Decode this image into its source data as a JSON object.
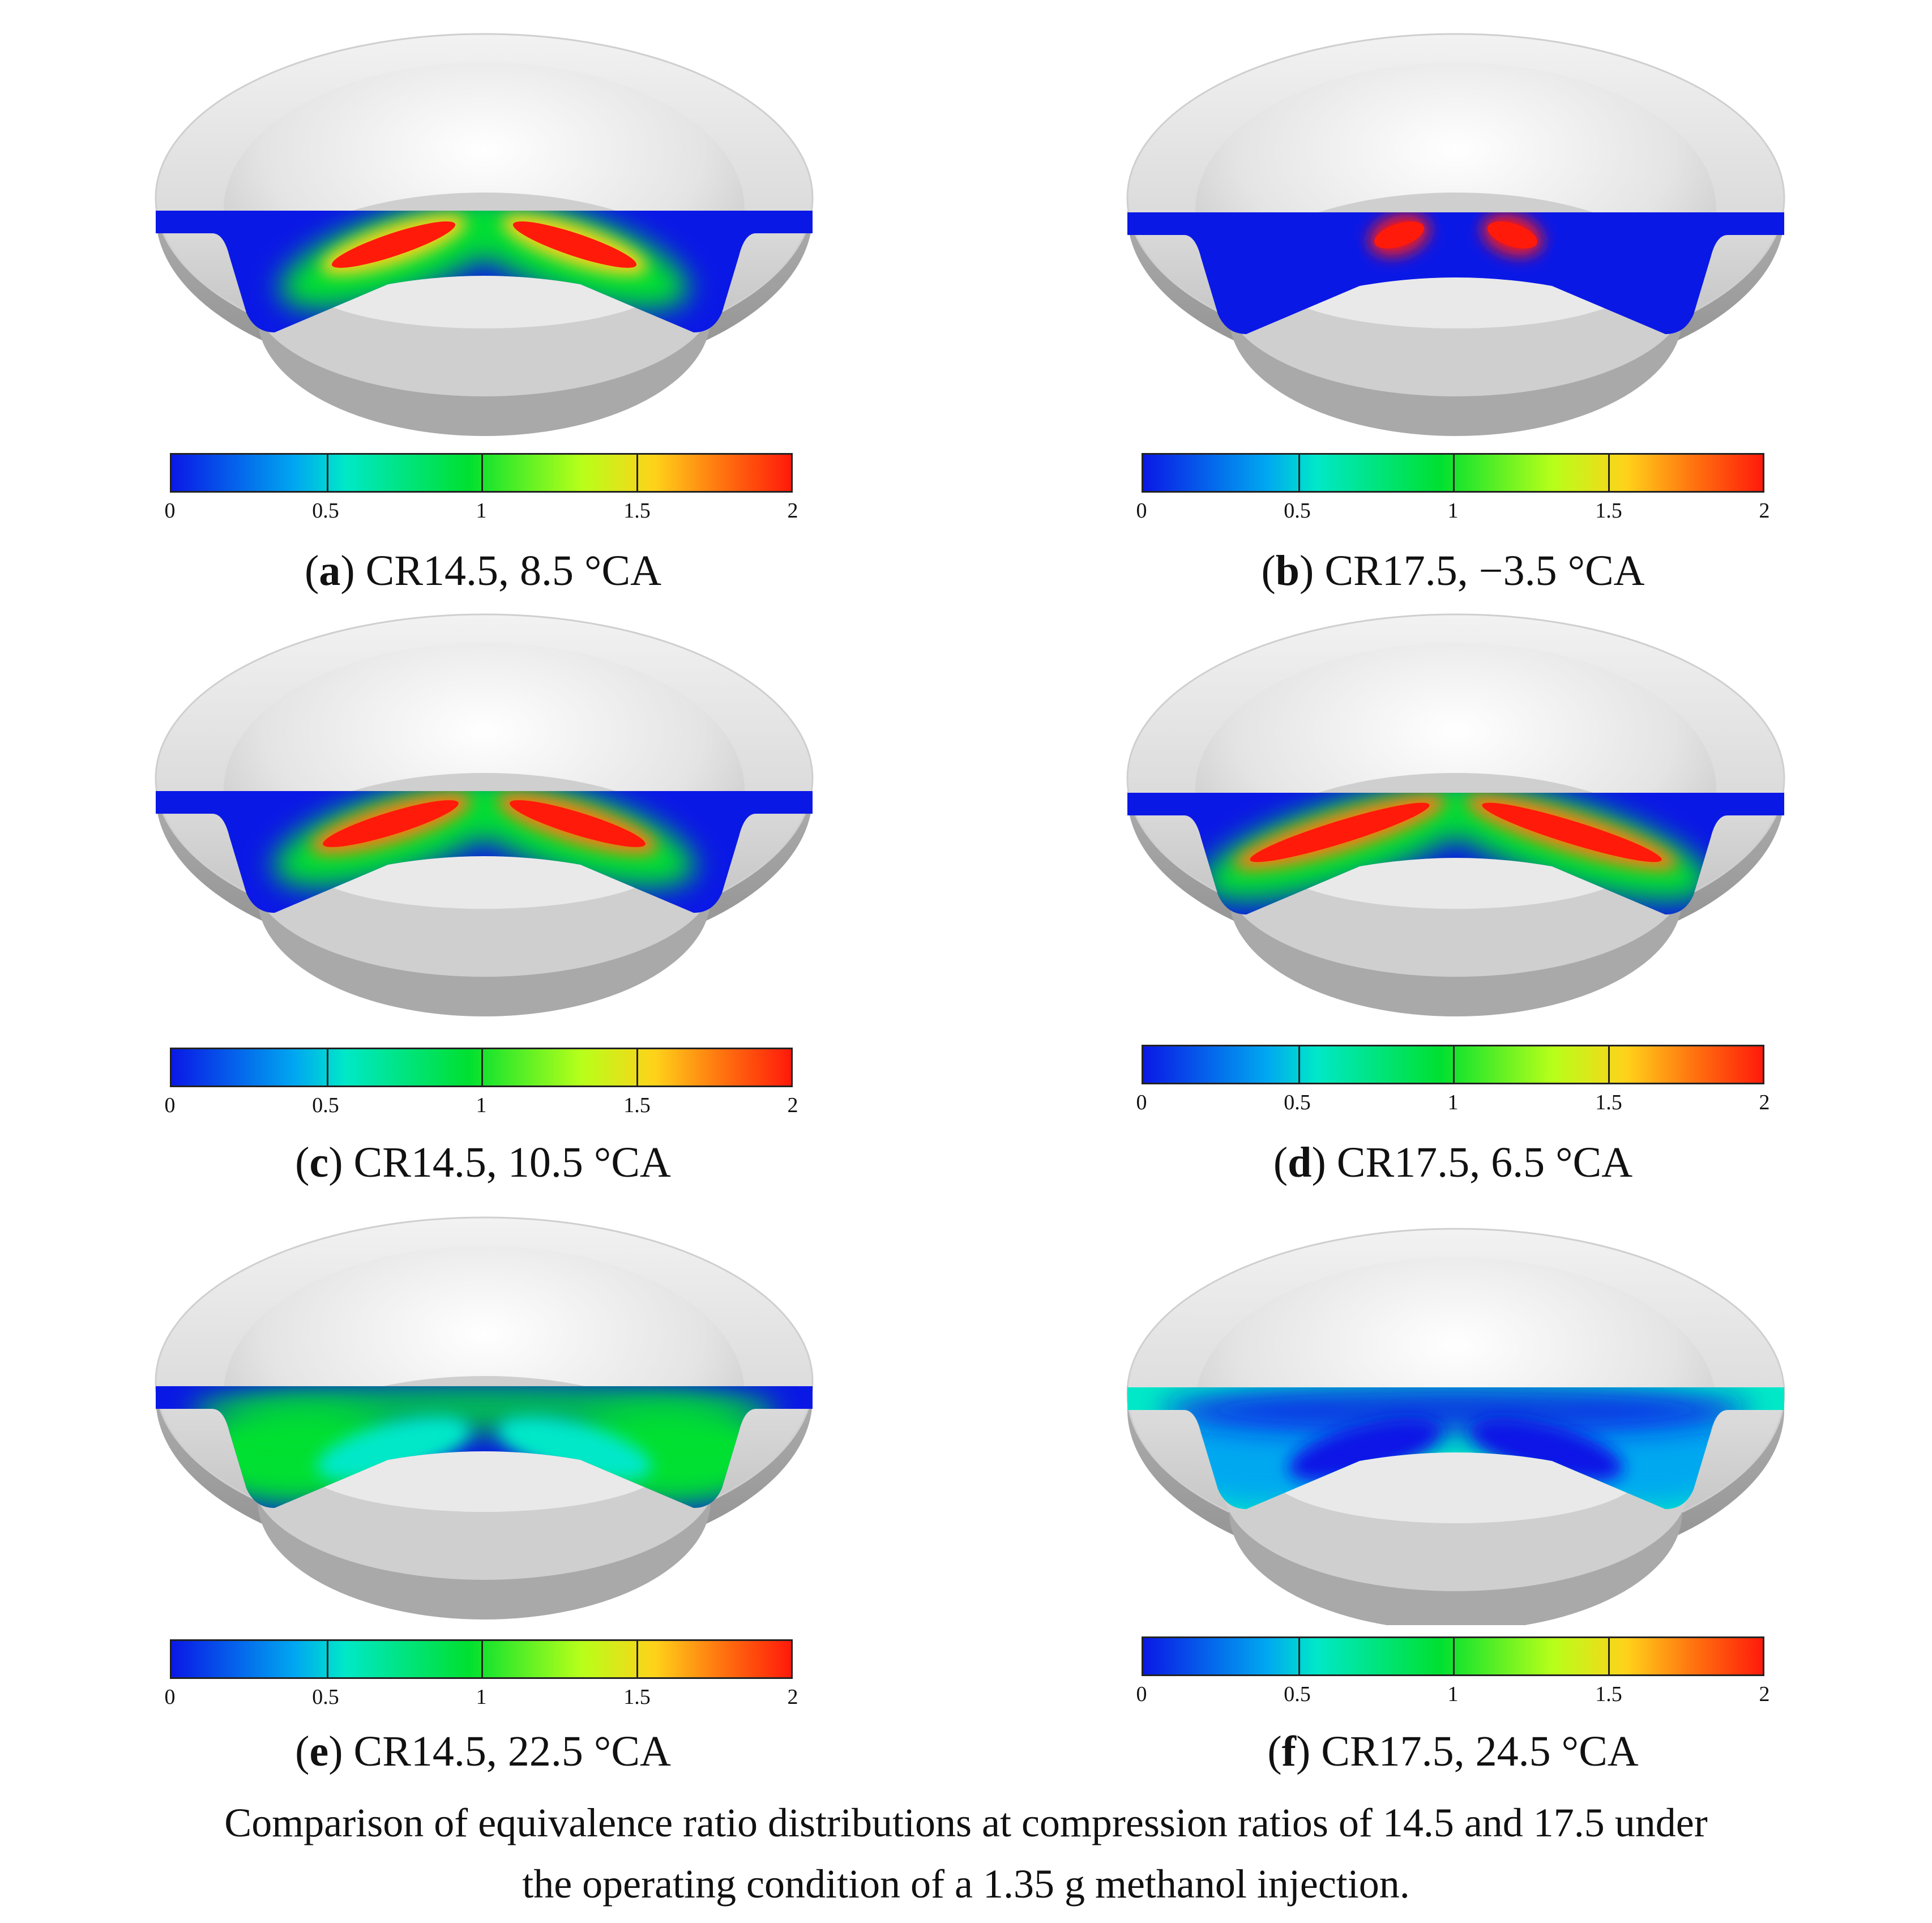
{
  "colorbar": {
    "ticks": [
      "0",
      "0.5",
      "1",
      "1.5",
      "2"
    ],
    "range": [
      0,
      2
    ],
    "colormap": [
      "#0a18e6",
      "#00a8f0",
      "#00e8c8",
      "#00e030",
      "#b6ff1a",
      "#ffd21a",
      "#ff7a10",
      "#ff1a0a"
    ]
  },
  "panels": [
    {
      "letter": "a",
      "text": "CR14.5, 8.5 °CA"
    },
    {
      "letter": "b",
      "text": "CR17.5, −3.5 °CA"
    },
    {
      "letter": "c",
      "text": "CR14.5, 10.5 °CA"
    },
    {
      "letter": "d",
      "text": "CR17.5, 6.5 °CA"
    },
    {
      "letter": "e",
      "text": "CR14.5, 22.5 °CA"
    },
    {
      "letter": "f",
      "text": "CR17.5, 24.5 °CA"
    }
  ],
  "caption": {
    "line1": "Comparison of equivalence ratio distributions at compression ratios of 14.5 and 17.5 under",
    "line2": "the operating condition of a 1.35 g methanol injection."
  }
}
